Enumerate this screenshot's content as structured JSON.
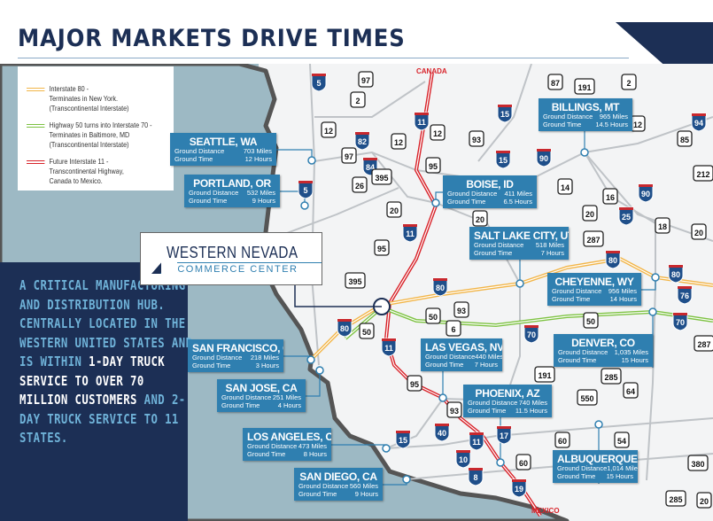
{
  "title": "MAJOR MARKETS DRIVE TIMES",
  "colors": {
    "navy": "#1c2f55",
    "callout": "#2f7fb0",
    "ocean": "#9db9c4",
    "i80": "#f2b548",
    "us50": "#7dc242",
    "i11": "#d8232a"
  },
  "legend": [
    {
      "line1": "Interstate 80 -",
      "line2": "Terminates in New York.",
      "line3": "(Transcontinental Interstate)",
      "color": "#f2b548"
    },
    {
      "line1": "Highway 50 turns into Interstate 70 -",
      "line2": "Terminates in Baltimore, MD",
      "line3": "(Transcontinental Interstate)",
      "color": "#7dc242"
    },
    {
      "line1": "Future Interstate 11 -",
      "line2": "Transcontinental Highway,",
      "line3": "Canada to Mexico.",
      "color": "#d8232a"
    }
  ],
  "panel": {
    "text1": "A CRITICAL MANUFACTURING AND DISTRIBUTION HUB. CENTRALLY LOCATED IN THE WESTERN UNITED STATES AND IS WITHIN ",
    "highlight1": "1-DAY TRUCK SERVICE TO OVER 70 MILLION CUSTOMERS",
    "text2": " AND 2-DAY TRUCK SERVICE TO 11 STATES."
  },
  "logo": {
    "line1": "WESTERN NEVADA",
    "line2": "COMMERCE CENTER"
  },
  "border_labels": {
    "north": "CANADA",
    "south": "MEXICO"
  },
  "dist_label": "Ground Distance",
  "time_label": "Ground Time",
  "markets": [
    {
      "name": "SEATTLE, WA",
      "distance": "703 Miles",
      "time": "12 Hours"
    },
    {
      "name": "PORTLAND, OR",
      "distance": "532 Miles",
      "time": "9 Hours"
    },
    {
      "name": "BILLINGS, MT",
      "distance": "965 Miles",
      "time": "14.5 Hours"
    },
    {
      "name": "BOISE, ID",
      "distance": "411 Miles",
      "time": "6.5 Hours"
    },
    {
      "name": "SALT LAKE CITY, UT",
      "distance": "518 Miles",
      "time": "7 Hours"
    },
    {
      "name": "CHEYENNE, WY",
      "distance": "956 Miles",
      "time": "14 Hours"
    },
    {
      "name": "LAS VEGAS, NV",
      "distance": "440 Miles",
      "time": "7 Hours"
    },
    {
      "name": "DENVER, CO",
      "distance": "1,035 Miles",
      "time": "15 Hours"
    },
    {
      "name": "SAN FRANCISCO, CA",
      "distance": "218 Miles",
      "time": "3 Hours"
    },
    {
      "name": "SAN JOSE, CA",
      "distance": "251 Miles",
      "time": "4 Hours"
    },
    {
      "name": "PHOENIX, AZ",
      "distance": "740 Miles",
      "time": "11.5 Hours"
    },
    {
      "name": "LOS ANGELES, CA",
      "distance": "473 Miles",
      "time": "8 Hours"
    },
    {
      "name": "ALBUQUERQUE, NM",
      "distance": "1,014 Miles",
      "time": "15 Hours"
    },
    {
      "name": "SAN DIEGO, CA",
      "distance": "560 Miles",
      "time": "9 Hours"
    }
  ],
  "shields": [
    {
      "label": "5",
      "type": "interstate"
    },
    {
      "label": "97",
      "type": "us"
    },
    {
      "label": "2",
      "type": "us"
    },
    {
      "label": "12",
      "type": "us"
    },
    {
      "label": "82",
      "type": "interstate"
    },
    {
      "label": "12",
      "type": "us"
    },
    {
      "label": "97",
      "type": "us"
    },
    {
      "label": "84",
      "type": "interstate"
    },
    {
      "label": "395",
      "type": "us"
    },
    {
      "label": "26",
      "type": "us"
    },
    {
      "label": "5",
      "type": "interstate"
    },
    {
      "label": "20",
      "type": "us"
    },
    {
      "label": "11",
      "type": "interstate"
    },
    {
      "label": "12",
      "type": "us"
    },
    {
      "label": "95",
      "type": "us"
    },
    {
      "label": "93",
      "type": "us"
    },
    {
      "label": "15",
      "type": "interstate"
    },
    {
      "label": "15",
      "type": "interstate"
    },
    {
      "label": "87",
      "type": "us"
    },
    {
      "label": "191",
      "type": "us"
    },
    {
      "label": "2",
      "type": "us"
    },
    {
      "label": "90",
      "type": "interstate"
    },
    {
      "label": "12",
      "type": "us"
    },
    {
      "label": "94",
      "type": "interstate"
    },
    {
      "label": "85",
      "type": "us"
    },
    {
      "label": "212",
      "type": "us"
    },
    {
      "label": "14",
      "type": "us"
    },
    {
      "label": "16",
      "type": "us"
    },
    {
      "label": "90",
      "type": "interstate"
    },
    {
      "label": "20",
      "type": "us"
    },
    {
      "label": "25",
      "type": "interstate"
    },
    {
      "label": "18",
      "type": "us"
    },
    {
      "label": "20",
      "type": "us"
    },
    {
      "label": "287",
      "type": "us"
    },
    {
      "label": "20",
      "type": "us"
    },
    {
      "label": "11",
      "type": "interstate"
    },
    {
      "label": "95",
      "type": "us"
    },
    {
      "label": "395",
      "type": "us"
    },
    {
      "label": "80",
      "type": "interstate"
    },
    {
      "label": "80",
      "type": "interstate"
    },
    {
      "label": "80",
      "type": "interstate"
    },
    {
      "label": "76",
      "type": "interstate"
    },
    {
      "label": "50",
      "type": "us"
    },
    {
      "label": "93",
      "type": "us"
    },
    {
      "label": "6",
      "type": "us"
    },
    {
      "label": "70",
      "type": "interstate"
    },
    {
      "label": "50",
      "type": "us"
    },
    {
      "label": "70",
      "type": "interstate"
    },
    {
      "label": "287",
      "type": "us"
    },
    {
      "label": "80",
      "type": "interstate"
    },
    {
      "label": "50",
      "type": "us"
    },
    {
      "label": "11",
      "type": "interstate"
    },
    {
      "label": "95",
      "type": "us"
    },
    {
      "label": "93",
      "type": "us"
    },
    {
      "label": "191",
      "type": "us"
    },
    {
      "label": "285",
      "type": "us"
    },
    {
      "label": "64",
      "type": "us"
    },
    {
      "label": "550",
      "type": "us"
    },
    {
      "label": "15",
      "type": "interstate"
    },
    {
      "label": "40",
      "type": "interstate"
    },
    {
      "label": "11",
      "type": "interstate"
    },
    {
      "label": "17",
      "type": "interstate"
    },
    {
      "label": "10",
      "type": "interstate"
    },
    {
      "label": "8",
      "type": "interstate"
    },
    {
      "label": "60",
      "type": "us"
    },
    {
      "label": "19",
      "type": "interstate"
    },
    {
      "label": "60",
      "type": "us"
    },
    {
      "label": "54",
      "type": "us"
    },
    {
      "label": "380",
      "type": "us"
    },
    {
      "label": "285",
      "type": "us"
    },
    {
      "label": "20",
      "type": "us"
    }
  ]
}
